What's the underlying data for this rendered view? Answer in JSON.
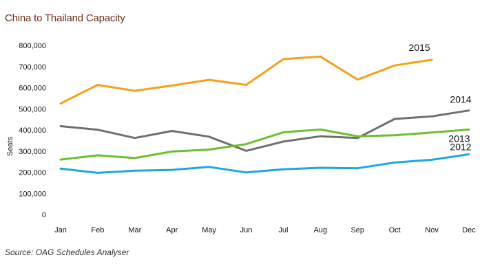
{
  "chart_data": {
    "type": "line",
    "title": "China to Thailand Capacity",
    "xlabel": "",
    "ylabel": "Seats",
    "categories": [
      "Jan",
      "Feb",
      "Mar",
      "Apr",
      "May",
      "Jun",
      "Jul",
      "Aug",
      "Sep",
      "Oct",
      "Nov",
      "Dec"
    ],
    "ylim": [
      0,
      800000
    ],
    "yticks": [
      "0",
      "100,000",
      "200,000",
      "300,000",
      "400,000",
      "500,000",
      "600,000",
      "700,000",
      "800,000"
    ],
    "grid": false,
    "legend": "inline-labels",
    "series": [
      {
        "name": "2015",
        "color": "#f5a01a",
        "values": [
          525000,
          613000,
          585000,
          610000,
          637000,
          613000,
          735000,
          747000,
          638000,
          705000,
          732000,
          null
        ]
      },
      {
        "name": "2014",
        "color": "#6f6f6b",
        "values": [
          418000,
          401000,
          362000,
          395000,
          368000,
          301000,
          345000,
          370000,
          362000,
          452000,
          464000,
          492000
        ]
      },
      {
        "name": "2013",
        "color": "#6cbf2c",
        "values": [
          260000,
          280000,
          267000,
          298000,
          307000,
          333000,
          389000,
          402000,
          370000,
          375000,
          388000,
          402000
        ]
      },
      {
        "name": "2012",
        "color": "#1aa9df",
        "values": [
          217000,
          197000,
          207000,
          211000,
          225000,
          199000,
          214000,
          221000,
          219000,
          246000,
          259000,
          285000
        ]
      }
    ]
  },
  "source": "Source: OAG Schedules Analyser"
}
